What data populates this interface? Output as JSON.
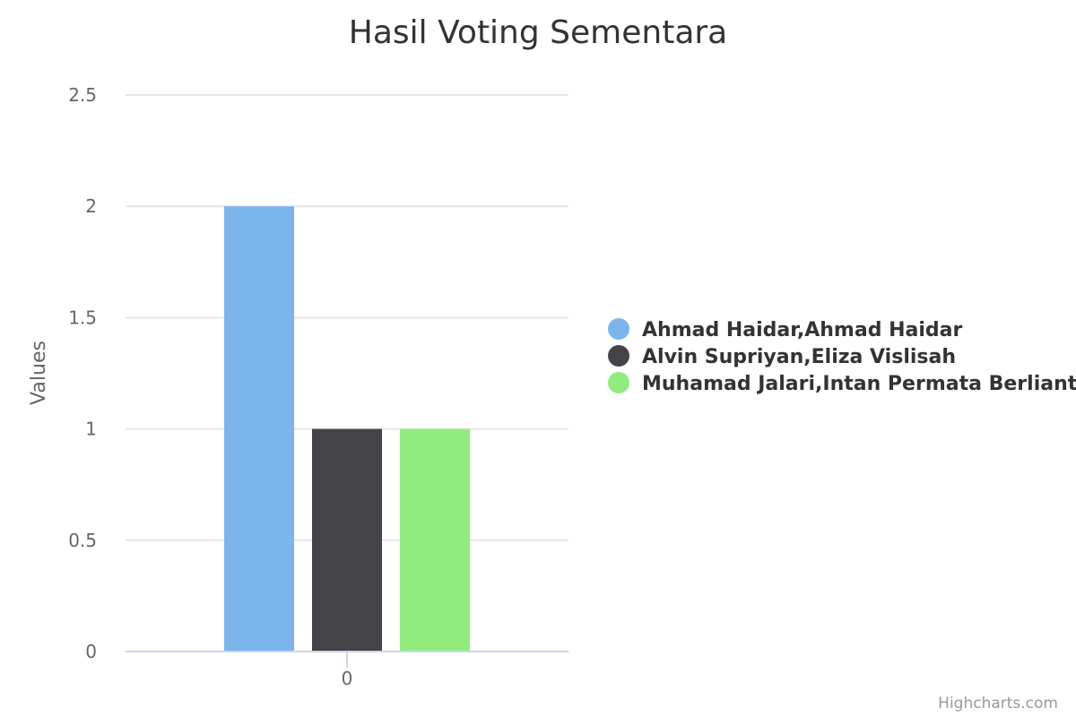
{
  "chart_data": {
    "type": "bar",
    "title": "Hasil Voting Sementara",
    "categories": [
      "0"
    ],
    "ylabel": "Values",
    "ylim": [
      0,
      2.5
    ],
    "yticks": [
      "0",
      "0.5",
      "1",
      "1.5",
      "2",
      "2.5"
    ],
    "grid": true,
    "legend_position": "right",
    "series": [
      {
        "name": "Ahmad Haidar,Ahmad Haidar",
        "values": [
          2
        ],
        "color": "#7cb5ec"
      },
      {
        "name": "Alvin Supriyan,Eliza Vislisah",
        "values": [
          1
        ],
        "color": "#434348"
      },
      {
        "name": "Muhamad Jalari,Intan Permata Berliant",
        "values": [
          1
        ],
        "color": "#90ed7d"
      }
    ]
  },
  "credits": "Highcharts.com"
}
